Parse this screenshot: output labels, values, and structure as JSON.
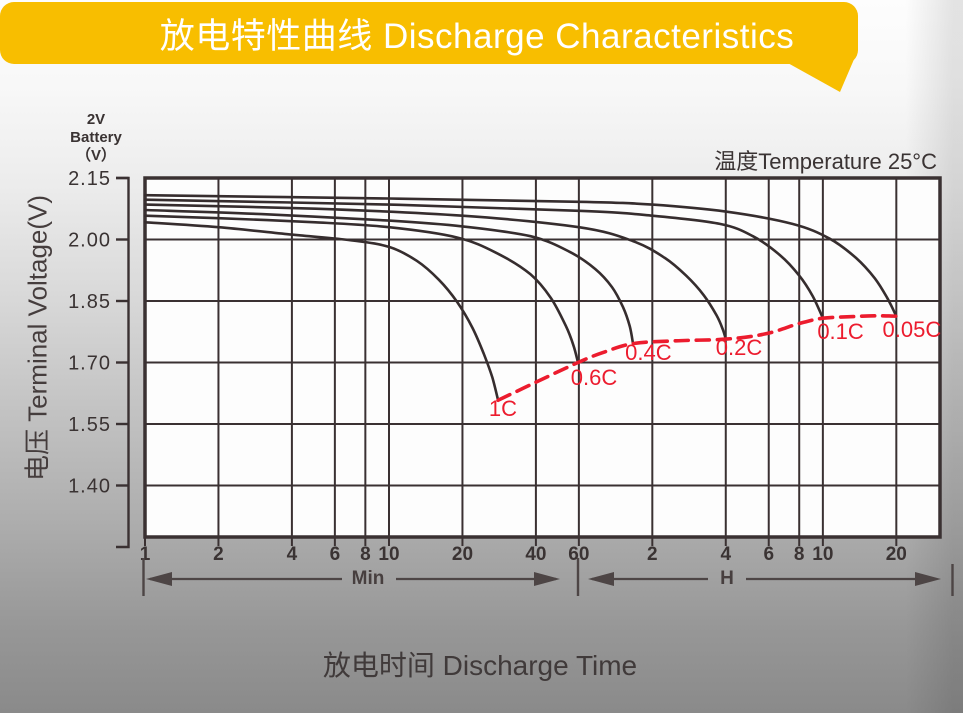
{
  "banner": {
    "title": "放电特性曲线 Discharge Characteristics"
  },
  "colors": {
    "banner_bg": "#F8BE00",
    "banner_text": "#FFFFFF",
    "grid": "#3A3132",
    "curve": "#362D2E",
    "red": "#EC1C2E",
    "text": "#3A3333",
    "arrow": "#4D4545",
    "plot_bg": "#FDFDFD"
  },
  "y_axis": {
    "unit_lines": [
      "2V",
      "Battery",
      "（V）"
    ],
    "title": "电压 Terminal Voltage(V)",
    "tick_labels": [
      "2.15",
      "2.00",
      "1.85",
      "1.70",
      "1.55",
      "1.40"
    ],
    "tick_values": [
      2.15,
      2.0,
      1.85,
      1.7,
      1.55,
      1.4
    ]
  },
  "x_axis": {
    "title": "放电时间 Discharge Time",
    "min_label": "Min",
    "h_label": "H",
    "min_ticks": [
      {
        "t": 1,
        "label": "1"
      },
      {
        "t": 2,
        "label": "2"
      },
      {
        "t": 4,
        "label": "4"
      },
      {
        "t": 6,
        "label": "6"
      },
      {
        "t": 8,
        "label": "8"
      },
      {
        "t": 10,
        "label": "10"
      },
      {
        "t": 20,
        "label": "20"
      },
      {
        "t": 40,
        "label": "40"
      },
      {
        "t": 60,
        "label": "60"
      }
    ],
    "hour_ticks": [
      {
        "t": 120,
        "label": "2"
      },
      {
        "t": 240,
        "label": "4"
      },
      {
        "t": 360,
        "label": "6"
      },
      {
        "t": 480,
        "label": "8"
      },
      {
        "t": 600,
        "label": "10"
      },
      {
        "t": 1200,
        "label": "20"
      }
    ]
  },
  "annotation": {
    "temperature": "温度Temperature 25°C"
  },
  "chart_data": {
    "type": "line",
    "title": "放电特性曲线 Discharge Characteristics",
    "xlabel": "放电时间 Discharge Time (Min / H)",
    "ylabel": "电压 Terminal Voltage(V)",
    "x_scale": "log",
    "x_unit": "minutes",
    "y_unit": "V",
    "x_range_minutes": [
      1,
      1812
    ],
    "y_gridline_values": [
      2.15,
      2.0,
      1.85,
      1.7,
      1.55,
      1.4
    ],
    "grid": true,
    "annotation": "温度Temperature 25°C",
    "series": [
      {
        "name": "1C",
        "color": "#362D2E",
        "dashed": false,
        "points": [
          [
            1,
            2.042
          ],
          [
            2,
            2.03
          ],
          [
            4,
            2.012
          ],
          [
            7,
            1.998
          ],
          [
            10,
            1.982
          ],
          [
            13,
            1.948
          ],
          [
            16,
            1.902
          ],
          [
            19,
            1.848
          ],
          [
            22,
            1.784
          ],
          [
            24.5,
            1.72
          ],
          [
            26.5,
            1.664
          ],
          [
            28,
            1.608
          ]
        ]
      },
      {
        "name": "0.6C",
        "color": "#362D2E",
        "dashed": false,
        "points": [
          [
            1,
            2.058
          ],
          [
            2,
            2.052
          ],
          [
            5,
            2.042
          ],
          [
            10,
            2.03
          ],
          [
            19,
            2.005
          ],
          [
            28,
            1.965
          ],
          [
            38,
            1.915
          ],
          [
            46,
            1.858
          ],
          [
            53,
            1.79
          ],
          [
            57,
            1.742
          ],
          [
            59.5,
            1.7
          ]
        ]
      },
      {
        "name": "0.4C",
        "color": "#362D2E",
        "dashed": false,
        "points": [
          [
            1,
            2.072
          ],
          [
            3,
            2.062
          ],
          [
            10,
            2.046
          ],
          [
            20,
            2.032
          ],
          [
            38,
            2.008
          ],
          [
            55,
            1.97
          ],
          [
            70,
            1.928
          ],
          [
            82,
            1.884
          ],
          [
            91,
            1.835
          ],
          [
            97,
            1.788
          ],
          [
            100,
            1.746
          ]
        ]
      },
      {
        "name": "0.2C",
        "color": "#362D2E",
        "dashed": false,
        "points": [
          [
            1,
            2.085
          ],
          [
            5,
            2.075
          ],
          [
            20,
            2.058
          ],
          [
            60,
            2.03
          ],
          [
            100,
            1.996
          ],
          [
            135,
            1.955
          ],
          [
            165,
            1.912
          ],
          [
            195,
            1.864
          ],
          [
            220,
            1.815
          ],
          [
            233,
            1.782
          ],
          [
            240,
            1.757
          ]
        ]
      },
      {
        "name": "0.1C",
        "color": "#362D2E",
        "dashed": false,
        "points": [
          [
            1,
            2.097
          ],
          [
            10,
            2.085
          ],
          [
            60,
            2.07
          ],
          [
            120,
            2.058
          ],
          [
            227,
            2.038
          ],
          [
            310,
            2.008
          ],
          [
            400,
            1.962
          ],
          [
            480,
            1.912
          ],
          [
            545,
            1.862
          ],
          [
            600,
            1.808
          ]
        ]
      },
      {
        "name": "0.05C",
        "color": "#362D2E",
        "dashed": false,
        "points": [
          [
            1,
            2.108
          ],
          [
            10,
            2.1
          ],
          [
            60,
            2.092
          ],
          [
            120,
            2.085
          ],
          [
            240,
            2.068
          ],
          [
            450,
            2.038
          ],
          [
            640,
            2.002
          ],
          [
            820,
            1.955
          ],
          [
            980,
            1.905
          ],
          [
            1100,
            1.858
          ],
          [
            1200,
            1.813
          ]
        ]
      },
      {
        "name": "discharge-end-envelope",
        "color": "#EC1C2E",
        "dashed": true,
        "points": [
          [
            28,
            1.608
          ],
          [
            40,
            1.652
          ],
          [
            59.5,
            1.7
          ],
          [
            75,
            1.724
          ],
          [
            100,
            1.746
          ],
          [
            150,
            1.753
          ],
          [
            240,
            1.757
          ],
          [
            350,
            1.77
          ],
          [
            480,
            1.795
          ],
          [
            600,
            1.808
          ],
          [
            800,
            1.812
          ],
          [
            1000,
            1.814
          ],
          [
            1200,
            1.813
          ]
        ]
      }
    ],
    "curve_labels": [
      {
        "text": "1C",
        "t": 29.3,
        "v": 1.589
      },
      {
        "text": "0.6C",
        "t": 69.2,
        "v": 1.665
      },
      {
        "text": "0.4C",
        "t": 115.6,
        "v": 1.726
      },
      {
        "text": "0.2C",
        "t": 272,
        "v": 1.738
      },
      {
        "text": "0.1C",
        "t": 709,
        "v": 1.777
      },
      {
        "text": "0.05C",
        "t": 1390,
        "v": 1.782
      }
    ]
  }
}
